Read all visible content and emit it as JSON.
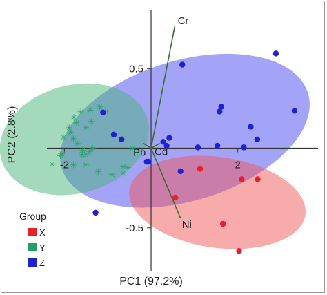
{
  "chart_data": {
    "type": "scatter",
    "xlabel": "PC1 (97.2%)",
    "ylabel": "PC2 (2.8%)",
    "xlim": [
      -3.2,
      3.9
    ],
    "ylim": [
      -0.77,
      0.87
    ],
    "x_ticks": [
      -2,
      2
    ],
    "x_tick_labels": [
      "-2",
      "2"
    ],
    "y_ticks": [
      0.5,
      -0.5
    ],
    "y_tick_labels": [
      "0.5",
      "-0.5"
    ],
    "grid": false,
    "legend": {
      "title": "Group",
      "position": "bottom-left"
    },
    "series": [
      {
        "name": "X",
        "color": "#e8202a",
        "marker": "circle",
        "x": [
          2.09,
          2.46,
          0.56,
          1.13,
          1.66,
          2.03
        ],
        "y": [
          -0.195,
          -0.195,
          -0.31,
          -0.13,
          -0.475,
          -0.645
        ]
      },
      {
        "name": "Y",
        "color": "#22a064",
        "marker": "asterisk",
        "x": [
          -1.62,
          -1.4,
          -1.18,
          -1.05,
          -1.38,
          -1.5,
          -1.78,
          -1.72,
          -1.89,
          -1.86,
          -1.79,
          -2.02,
          -1.7,
          -1.34,
          -1.58,
          -1.51,
          -1.42,
          -0.43,
          -0.53,
          -2.28,
          -2.09,
          -2.05,
          -1.59,
          -1.79,
          -1.5,
          -1.22,
          -0.9,
          -0.64,
          -0.64
        ],
        "y": [
          0.23,
          0.24,
          0.26,
          0.23,
          0.17,
          0.13,
          0.195,
          0.16,
          0.13,
          0.1,
          0.06,
          0.07,
          0.03,
          0.0,
          -0.01,
          -0.04,
          -0.02,
          0.0,
          -0.12,
          -0.1,
          -0.045,
          -0.035,
          -0.04,
          -0.105,
          -0.105,
          -0.145,
          -0.165,
          -0.115,
          -0.155
        ]
      },
      {
        "name": "Z",
        "color": "#1f22d1",
        "marker": "circle",
        "x": [
          -1.11,
          -0.86,
          -0.68,
          0.28,
          0.42,
          0.36,
          0.72,
          1.62,
          1.58,
          2.14,
          2.3,
          2.45,
          3.31,
          2.88,
          1.53,
          1.08,
          0.68,
          -0.06,
          -0.1,
          -1.28
        ],
        "y": [
          0.225,
          0.085,
          0.055,
          0.04,
          0.065,
          0.015,
          0.525,
          0.26,
          0.23,
          0.005,
          0.135,
          0.055,
          0.235,
          0.595,
          0.015,
          0.005,
          -0.145,
          -0.085,
          -0.085,
          -0.405
        ]
      }
    ],
    "loading_vectors": [
      {
        "label": "Cr",
        "x": 0.55,
        "y": 0.77
      },
      {
        "label": "Ni",
        "x": 0.68,
        "y": -0.44
      },
      {
        "label": "Pb",
        "x": -0.18,
        "y": 0.03
      },
      {
        "label": "Cd",
        "x": 0.2,
        "y": 0.03
      }
    ],
    "ellipses": [
      {
        "group": "Z",
        "color": "#4848f2",
        "center": [
          0.78,
          0.11
        ],
        "semi_axes": [
          2.97,
          0.44
        ],
        "rotation_deg": -17
      },
      {
        "group": "Y",
        "color": "#4ab57a",
        "center": [
          -1.77,
          0.056
        ],
        "semi_axes": [
          1.75,
          0.34
        ],
        "rotation_deg": -15
      },
      {
        "group": "X",
        "color": "#f25858",
        "center": [
          1.53,
          -0.34
        ],
        "semi_axes": [
          2.05,
          0.285
        ],
        "rotation_deg": 8
      }
    ]
  }
}
